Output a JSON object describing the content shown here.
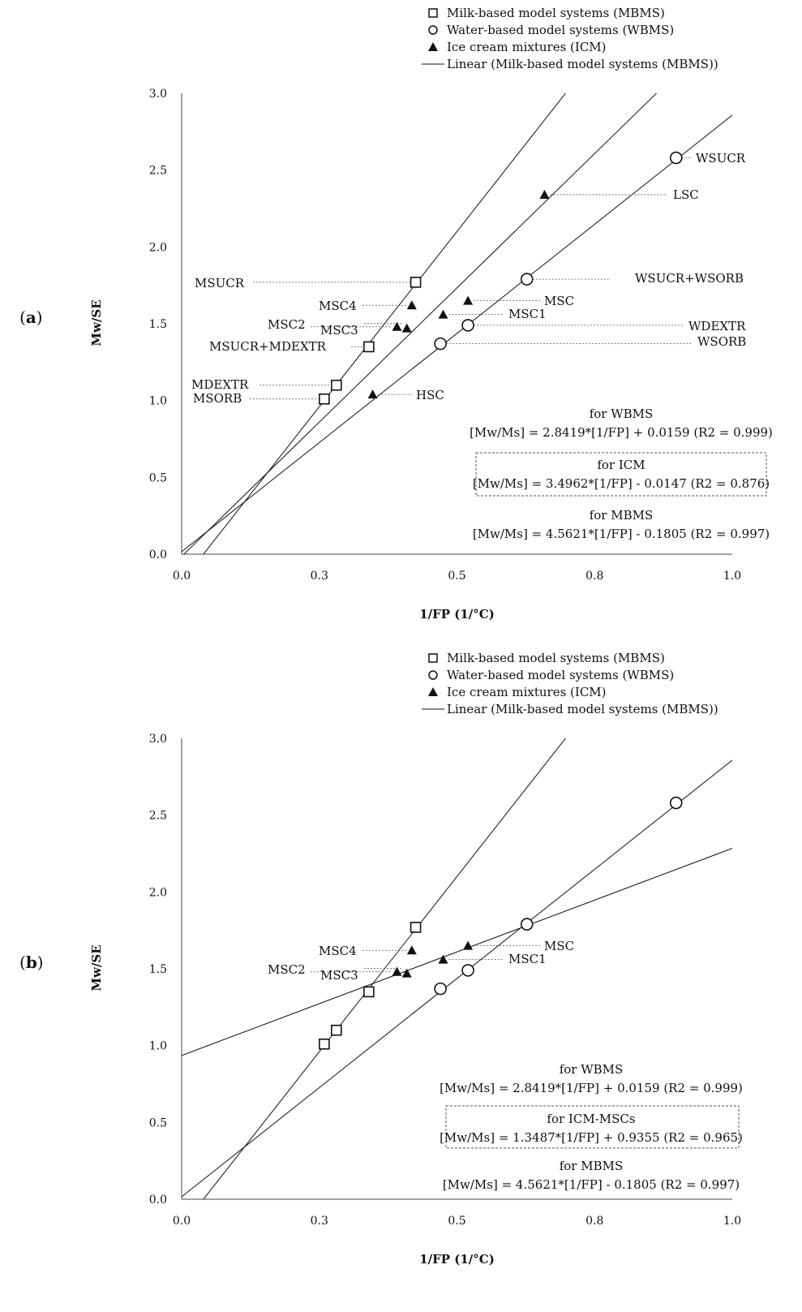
{
  "chart_data": [
    {
      "panel": "(a)",
      "panel_letter": "a",
      "type": "scatter",
      "xlabel": "1/FP (1/°C)",
      "ylabel": "Mw/SE",
      "xlim": [
        0,
        1.0
      ],
      "ylim": [
        0,
        3.0
      ],
      "x_ticks": [
        "0.0",
        "0.3",
        "0.5",
        "0.8",
        "1.0"
      ],
      "y_ticks": [
        "0.0",
        "0.5",
        "1.0",
        "1.5",
        "2.0",
        "2.5",
        "3.0"
      ],
      "legend": [
        {
          "symbol": "square",
          "label": "Milk-based model systems (MBMS)"
        },
        {
          "symbol": "circle",
          "label": "Water-based model systems (WBMS)"
        },
        {
          "symbol": "triangle",
          "label": "Ice cream mixtures (ICM)"
        },
        {
          "symbol": "line",
          "label": "Linear (Milk-based model systems (MBMS))"
        }
      ],
      "series": [
        {
          "name": "MBMS",
          "symbol": "square",
          "points": [
            {
              "x": 0.259,
              "y": 1.01,
              "label": "MSORB"
            },
            {
              "x": 0.281,
              "y": 1.1,
              "label": "MDEXTR"
            },
            {
              "x": 0.34,
              "y": 1.35,
              "label": "MSUCR+MDEXTR"
            },
            {
              "x": 0.425,
              "y": 1.77,
              "label": "MSUCR"
            }
          ]
        },
        {
          "name": "WBMS",
          "symbol": "circle",
          "points": [
            {
              "x": 0.47,
              "y": 1.37,
              "label": "WSORB"
            },
            {
              "x": 0.52,
              "y": 1.49,
              "label": "WDEXTR"
            },
            {
              "x": 0.627,
              "y": 1.79,
              "label": "WSUCR+WSORB"
            },
            {
              "x": 0.898,
              "y": 2.58,
              "label": "WSUCR"
            }
          ]
        },
        {
          "name": "ICM",
          "symbol": "triangle",
          "points": [
            {
              "x": 0.347,
              "y": 1.04,
              "label": "HSC"
            },
            {
              "x": 0.391,
              "y": 1.48,
              "label": "MSC2"
            },
            {
              "x": 0.409,
              "y": 1.47,
              "label": "MSC3"
            },
            {
              "x": 0.418,
              "y": 1.62,
              "label": "MSC4"
            },
            {
              "x": 0.475,
              "y": 1.56,
              "label": "MSC1"
            },
            {
              "x": 0.52,
              "y": 1.65,
              "label": "MSC"
            },
            {
              "x": 0.659,
              "y": 2.34,
              "label": "LSC"
            }
          ]
        }
      ],
      "trendlines": [
        {
          "name": "WBMS",
          "slope": 2.8419,
          "intercept": 0.0159
        },
        {
          "name": "ICM",
          "slope": 3.4962,
          "intercept": -0.0147
        },
        {
          "name": "MBMS",
          "slope": 4.5621,
          "intercept": -0.1805
        }
      ],
      "equations": [
        {
          "title": "for WBMS",
          "text": "[Mw/Ms] = 2.8419*[1/FP] + 0.0159 (R2 = 0.999)",
          "boxed": false
        },
        {
          "title": "for ICM",
          "text": "[Mw/Ms] = 3.4962*[1/FP] - 0.0147 (R2 = 0.876)",
          "boxed": true
        },
        {
          "title": "for MBMS",
          "text": "[Mw/Ms] = 4.5621*[1/FP] - 0.1805 (R2 = 0.997)",
          "boxed": false
        }
      ]
    },
    {
      "panel": "(b)",
      "panel_letter": "b",
      "type": "scatter",
      "xlabel": "1/FP (1/°C)",
      "ylabel": "Mw/SE",
      "xlim": [
        0,
        1.0
      ],
      "ylim": [
        0,
        3.0
      ],
      "x_ticks": [
        "0.0",
        "0.3",
        "0.5",
        "0.8",
        "1.0"
      ],
      "y_ticks": [
        "0.0",
        "0.5",
        "1.0",
        "1.5",
        "2.0",
        "2.5",
        "3.0"
      ],
      "legend": [
        {
          "symbol": "square",
          "label": "Milk-based model systems (MBMS)"
        },
        {
          "symbol": "circle",
          "label": "Water-based model systems (WBMS)"
        },
        {
          "symbol": "triangle",
          "label": "Ice cream mixtures (ICM)"
        },
        {
          "symbol": "line",
          "label": "Linear (Milk-based model systems (MBMS))"
        }
      ],
      "series": [
        {
          "name": "MBMS",
          "symbol": "square",
          "points": [
            {
              "x": 0.259,
              "y": 1.01,
              "label": ""
            },
            {
              "x": 0.281,
              "y": 1.1,
              "label": ""
            },
            {
              "x": 0.34,
              "y": 1.35,
              "label": ""
            },
            {
              "x": 0.425,
              "y": 1.77,
              "label": ""
            }
          ]
        },
        {
          "name": "WBMS",
          "symbol": "circle",
          "points": [
            {
              "x": 0.47,
              "y": 1.37,
              "label": ""
            },
            {
              "x": 0.52,
              "y": 1.49,
              "label": ""
            },
            {
              "x": 0.627,
              "y": 1.79,
              "label": ""
            },
            {
              "x": 0.898,
              "y": 2.58,
              "label": ""
            }
          ]
        },
        {
          "name": "ICM",
          "symbol": "triangle",
          "points": [
            {
              "x": 0.391,
              "y": 1.48,
              "label": "MSC2"
            },
            {
              "x": 0.409,
              "y": 1.47,
              "label": "MSC3"
            },
            {
              "x": 0.418,
              "y": 1.62,
              "label": "MSC4"
            },
            {
              "x": 0.475,
              "y": 1.56,
              "label": "MSC1"
            },
            {
              "x": 0.52,
              "y": 1.65,
              "label": "MSC"
            }
          ]
        }
      ],
      "trendlines": [
        {
          "name": "WBMS",
          "slope": 2.8419,
          "intercept": 0.0159
        },
        {
          "name": "ICM-MSCs",
          "slope": 1.3487,
          "intercept": 0.9355
        },
        {
          "name": "MBMS",
          "slope": 4.5621,
          "intercept": -0.1805
        }
      ],
      "equations": [
        {
          "title": "for WBMS",
          "text": "[Mw/Ms] = 2.8419*[1/FP] + 0.0159 (R2 = 0.999)",
          "boxed": false
        },
        {
          "title": "for ICM-MSCs",
          "text": "[Mw/Ms] = 1.3487*[1/FP] + 0.9355 (R2 = 0.965)",
          "boxed": true
        },
        {
          "title": "for MBMS",
          "text": "[Mw/Ms] = 4.5621*[1/FP] - 0.1805 (R2 = 0.997)",
          "boxed": false
        }
      ]
    }
  ]
}
